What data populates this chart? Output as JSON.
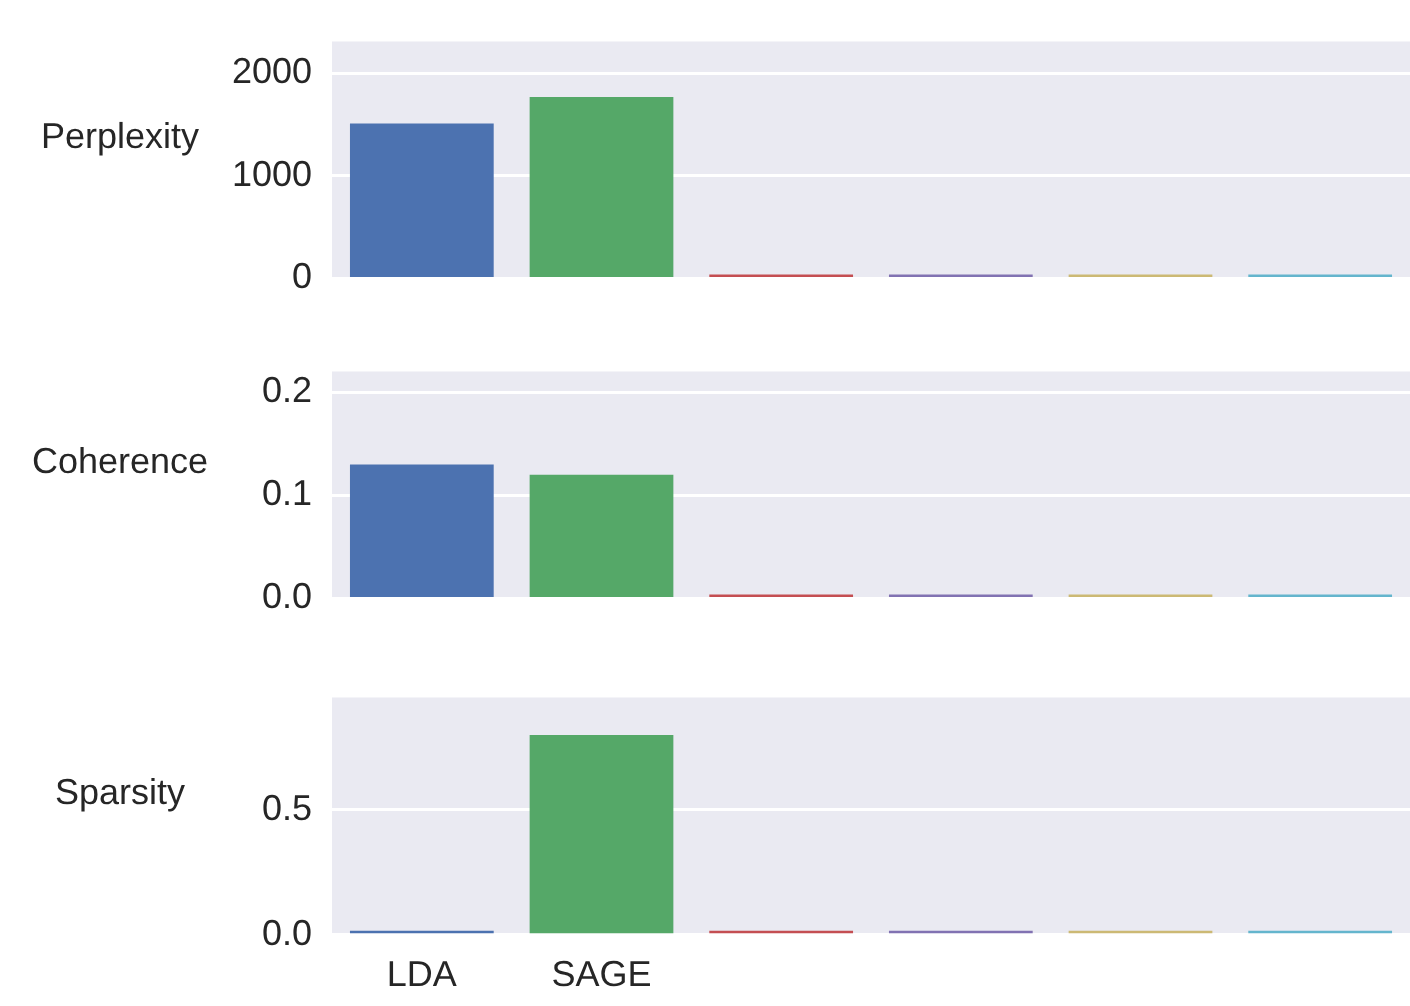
{
  "chart_data": [
    {
      "type": "bar",
      "ylabel": "Perplexity",
      "categories": [
        null,
        null,
        null,
        null,
        null,
        null
      ],
      "values": [
        1510,
        1770,
        0,
        0,
        0,
        0
      ],
      "colors": [
        "#4c72b0",
        "#55a868",
        "#c44e52",
        "#8172b2",
        "#ccb974",
        "#64b5cd"
      ],
      "ylim": [
        0,
        2310
      ],
      "yticks": [
        0,
        1000,
        2000
      ],
      "grid": "y",
      "tick_labels": "y"
    },
    {
      "type": "bar",
      "ylabel": "Coherence",
      "categories": [
        null,
        null,
        null,
        null,
        null,
        null
      ],
      "values": [
        0.13,
        0.12,
        0,
        0,
        0,
        0
      ],
      "colors": [
        "#4c72b0",
        "#55a868",
        "#c44e52",
        "#8172b2",
        "#ccb974",
        "#64b5cd"
      ],
      "ylim": [
        0,
        0.22
      ],
      "yticks": [
        {
          "value": 0,
          "label": "0.0"
        },
        0.1,
        0.2
      ],
      "grid": "y",
      "tick_labels": "y"
    },
    {
      "type": "bar",
      "ylabel": "Sparsity",
      "categories": [
        "LDA",
        "SAGE",
        null,
        null,
        null,
        null
      ],
      "values": [
        0,
        0.8,
        0,
        0,
        0,
        0
      ],
      "colors": [
        "#4c72b0",
        "#55a868",
        "#c44e52",
        "#8172b2",
        "#ccb974",
        "#64b5cd"
      ],
      "ylim": [
        0,
        0.95
      ],
      "yticks": [
        {
          "value": 0,
          "label": "0.0"
        },
        0.5
      ],
      "grid": "y"
    }
  ]
}
